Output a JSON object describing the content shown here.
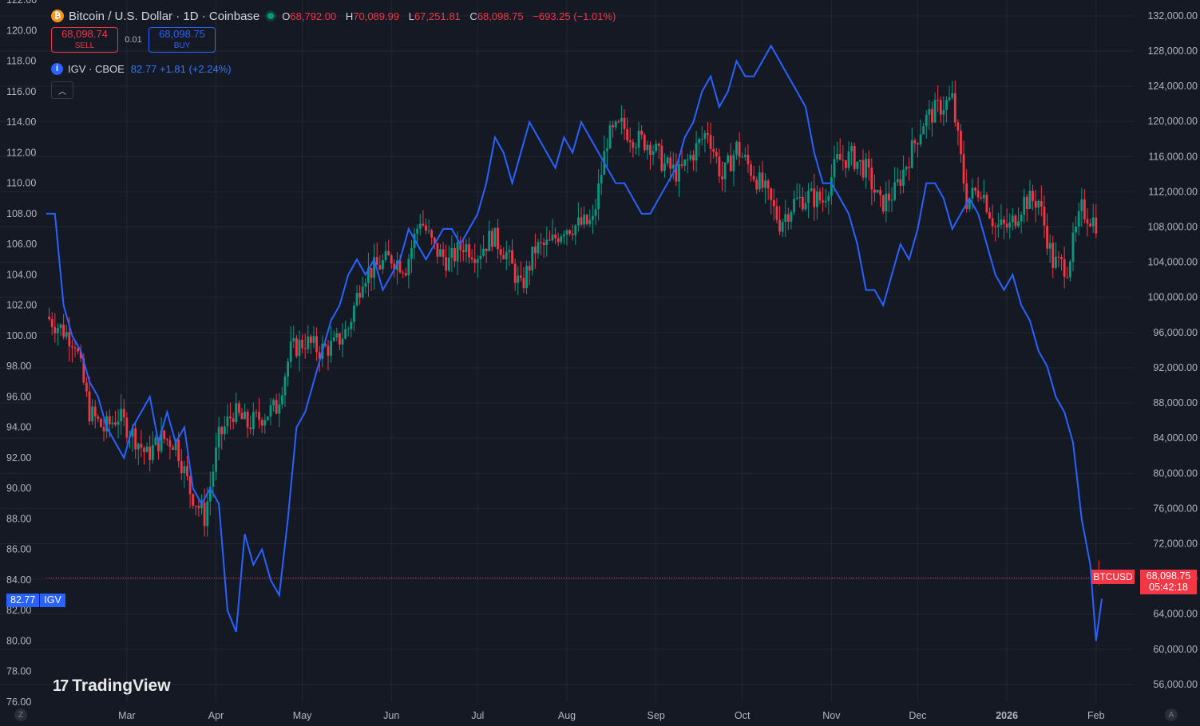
{
  "header": {
    "symbol_title": "Bitcoin / U.S. Dollar · 1D · Coinbase",
    "coin_glyph": "₿",
    "ohlc": {
      "o_label": "O",
      "o": "68,792.00",
      "h_label": "H",
      "h": "70,089.99",
      "l_label": "L",
      "l": "67,251.81",
      "c_label": "C",
      "c": "68,098.75",
      "change": "−693.25 (−1.01%)"
    },
    "sell_price": "68,098.74",
    "sell_label": "SELL",
    "spread": "0.01",
    "buy_price": "68,098.75",
    "buy_label": "BUY",
    "overlay_name": "IGV · CBOE",
    "overlay_values": "82.77  +1.81 (+2.24%)",
    "info_glyph": "i",
    "collapse_glyph": "︿"
  },
  "branding": {
    "logo_text": "TradingView",
    "logo_mark": "17"
  },
  "price_tags": {
    "btc_symbol": "BTCUSD",
    "btc_price": "68,098.75",
    "btc_countdown": "05:42:18",
    "igv_value": "82.77",
    "igv_symbol": "IGV"
  },
  "corner_buttons": {
    "left": "Z",
    "right": "A"
  },
  "colors": {
    "background": "#151924",
    "grid": "#232735",
    "up": "#089981",
    "down": "#f23645",
    "igv_line": "#2962ff",
    "axis_text": "#b2b5be"
  },
  "chart_data": [
    {
      "type": "candlestick",
      "series_name": "BTCUSD",
      "axis": "right",
      "ylim": [
        54000,
        133800
      ],
      "y_ticks": [
        56000,
        60000,
        64000,
        68000,
        72000,
        76000,
        80000,
        84000,
        88000,
        92000,
        96000,
        100000,
        104000,
        108000,
        112000,
        116000,
        120000,
        124000,
        128000,
        132000
      ],
      "y_tick_labels": [
        "56,000.00",
        "60,000.00",
        "64,000.00",
        "68,000.00",
        "72,000.00",
        "76,000.00",
        "80,000.00",
        "84,000.00",
        "88,000.00",
        "92,000.00",
        "96,000.00",
        "100,000.00",
        "104,000.00",
        "108,000.00",
        "112,000.00",
        "116,000.00",
        "120,000.00",
        "124,000.00",
        "128,000.00",
        "132,000.00"
      ],
      "x_range_days": [
        0,
        367
      ],
      "close_anchors": [
        [
          0,
          97800
        ],
        [
          5,
          96500
        ],
        [
          10,
          95000
        ],
        [
          15,
          87000
        ],
        [
          20,
          85000
        ],
        [
          25,
          86500
        ],
        [
          30,
          84500
        ],
        [
          35,
          82000
        ],
        [
          40,
          84000
        ],
        [
          45,
          83500
        ],
        [
          50,
          78000
        ],
        [
          55,
          75000
        ],
        [
          60,
          84000
        ],
        [
          65,
          87000
        ],
        [
          70,
          85500
        ],
        [
          75,
          86500
        ],
        [
          80,
          87500
        ],
        [
          85,
          94000
        ],
        [
          90,
          95000
        ],
        [
          95,
          94000
        ],
        [
          100,
          94500
        ],
        [
          105,
          96500
        ],
        [
          110,
          102500
        ],
        [
          115,
          103500
        ],
        [
          120,
          104500
        ],
        [
          125,
          103500
        ],
        [
          130,
          109000
        ],
        [
          135,
          105500
        ],
        [
          140,
          104000
        ],
        [
          145,
          106000
        ],
        [
          150,
          105000
        ],
        [
          155,
          107000
        ],
        [
          160,
          105000
        ],
        [
          165,
          101000
        ],
        [
          170,
          105500
        ],
        [
          175,
          106000
        ],
        [
          180,
          108000
        ],
        [
          185,
          108200
        ],
        [
          190,
          108500
        ],
        [
          195,
          118000
        ],
        [
          200,
          119500
        ],
        [
          205,
          118000
        ],
        [
          210,
          117500
        ],
        [
          215,
          115000
        ],
        [
          220,
          114000
        ],
        [
          225,
          116500
        ],
        [
          230,
          119000
        ],
        [
          235,
          113500
        ],
        [
          240,
          117000
        ],
        [
          245,
          114500
        ],
        [
          250,
          112000
        ],
        [
          255,
          108500
        ],
        [
          260,
          110800
        ],
        [
          265,
          111500
        ],
        [
          270,
          111000
        ],
        [
          275,
          115500
        ],
        [
          280,
          116000
        ],
        [
          285,
          114500
        ],
        [
          290,
          110500
        ],
        [
          295,
          112000
        ],
        [
          300,
          116000
        ],
        [
          305,
          120000
        ],
        [
          310,
          121500
        ],
        [
          315,
          122500
        ],
        [
          320,
          111000
        ],
        [
          325,
          112500
        ],
        [
          330,
          108000
        ],
        [
          335,
          108000
        ],
        [
          340,
          111000
        ],
        [
          345,
          111000
        ],
        [
          350,
          104000
        ],
        [
          355,
          103500
        ],
        [
          360,
          110000
        ],
        [
          365,
          108500
        ]
      ],
      "last": {
        "open": 68792.0,
        "high": 70089.99,
        "low": 67251.81,
        "close": 68098.75
      }
    },
    {
      "type": "line",
      "series_name": "IGV · CBOE",
      "axis": "left",
      "ylim": [
        76,
        122
      ],
      "y_ticks": [
        76,
        78,
        80,
        82,
        84,
        86,
        88,
        90,
        92,
        94,
        96,
        98,
        100,
        102,
        104,
        106,
        108,
        110,
        112,
        114,
        116,
        118,
        120,
        122
      ],
      "y_tick_labels": [
        "76.00",
        "78.00",
        "80.00",
        "82.00",
        "84.00",
        "86.00",
        "88.00",
        "90.00",
        "92.00",
        "94.00",
        "96.00",
        "98.00",
        "100.00",
        "102.00",
        "104.00",
        "106.00",
        "108.00",
        "110.00",
        "112.00",
        "114.00",
        "116.00",
        "118.00",
        "120.00",
        "122.00"
      ],
      "x_months": [
        "Mar",
        "Apr",
        "May",
        "Jun",
        "Jul",
        "Aug",
        "Sep",
        "Oct",
        "Nov",
        "Dec",
        "2026",
        "Feb"
      ],
      "x_month_days": [
        28,
        59,
        89,
        120,
        150,
        181,
        212,
        242,
        273,
        303,
        334,
        365
      ],
      "points": [
        [
          0,
          108
        ],
        [
          3,
          108
        ],
        [
          6,
          102
        ],
        [
          9,
          100
        ],
        [
          12,
          99
        ],
        [
          15,
          97
        ],
        [
          18,
          96
        ],
        [
          21,
          94
        ],
        [
          24,
          93
        ],
        [
          27,
          92
        ],
        [
          30,
          94
        ],
        [
          33,
          95
        ],
        [
          36,
          96
        ],
        [
          39,
          93
        ],
        [
          42,
          95
        ],
        [
          45,
          93
        ],
        [
          48,
          94
        ],
        [
          51,
          90
        ],
        [
          54,
          89
        ],
        [
          57,
          90
        ],
        [
          60,
          89
        ],
        [
          63,
          82
        ],
        [
          66,
          80.6
        ],
        [
          69,
          87
        ],
        [
          72,
          85
        ],
        [
          75,
          86
        ],
        [
          78,
          84
        ],
        [
          81,
          83
        ],
        [
          84,
          88
        ],
        [
          87,
          94
        ],
        [
          90,
          95
        ],
        [
          93,
          97
        ],
        [
          96,
          99
        ],
        [
          99,
          101
        ],
        [
          102,
          102
        ],
        [
          105,
          104
        ],
        [
          108,
          105
        ],
        [
          111,
          104
        ],
        [
          114,
          105
        ],
        [
          117,
          103
        ],
        [
          120,
          104
        ],
        [
          123,
          105
        ],
        [
          126,
          107
        ],
        [
          129,
          106
        ],
        [
          132,
          105
        ],
        [
          135,
          106
        ],
        [
          138,
          107
        ],
        [
          141,
          107
        ],
        [
          144,
          106
        ],
        [
          147,
          107
        ],
        [
          150,
          108
        ],
        [
          153,
          110
        ],
        [
          156,
          113
        ],
        [
          159,
          112
        ],
        [
          162,
          110
        ],
        [
          165,
          112
        ],
        [
          168,
          114
        ],
        [
          171,
          113
        ],
        [
          174,
          112
        ],
        [
          177,
          111
        ],
        [
          180,
          113
        ],
        [
          183,
          112
        ],
        [
          186,
          114
        ],
        [
          189,
          113
        ],
        [
          192,
          112
        ],
        [
          195,
          111
        ],
        [
          198,
          110
        ],
        [
          201,
          110
        ],
        [
          204,
          109
        ],
        [
          207,
          108
        ],
        [
          210,
          108
        ],
        [
          213,
          109
        ],
        [
          216,
          110
        ],
        [
          219,
          111
        ],
        [
          222,
          113
        ],
        [
          225,
          114
        ],
        [
          228,
          116
        ],
        [
          231,
          117
        ],
        [
          234,
          115
        ],
        [
          237,
          116
        ],
        [
          240,
          118
        ],
        [
          243,
          117
        ],
        [
          246,
          117
        ],
        [
          249,
          118
        ],
        [
          252,
          119
        ],
        [
          255,
          118
        ],
        [
          258,
          117
        ],
        [
          261,
          116
        ],
        [
          264,
          115
        ],
        [
          267,
          112
        ],
        [
          270,
          110
        ],
        [
          273,
          110
        ],
        [
          276,
          109
        ],
        [
          279,
          108
        ],
        [
          282,
          106
        ],
        [
          285,
          103
        ],
        [
          288,
          103
        ],
        [
          291,
          102
        ],
        [
          294,
          104
        ],
        [
          297,
          106
        ],
        [
          300,
          105
        ],
        [
          303,
          107
        ],
        [
          306,
          110
        ],
        [
          309,
          110
        ],
        [
          312,
          109
        ],
        [
          315,
          107
        ],
        [
          318,
          108
        ],
        [
          321,
          109
        ],
        [
          324,
          108
        ],
        [
          327,
          106
        ],
        [
          330,
          104
        ],
        [
          333,
          103
        ],
        [
          336,
          104
        ],
        [
          339,
          102
        ],
        [
          342,
          101
        ],
        [
          345,
          99
        ],
        [
          348,
          98
        ],
        [
          351,
          96
        ],
        [
          354,
          95
        ],
        [
          357,
          93
        ],
        [
          360,
          88
        ],
        [
          363,
          85
        ],
        [
          365,
          80
        ],
        [
          367,
          82.77
        ]
      ]
    }
  ]
}
